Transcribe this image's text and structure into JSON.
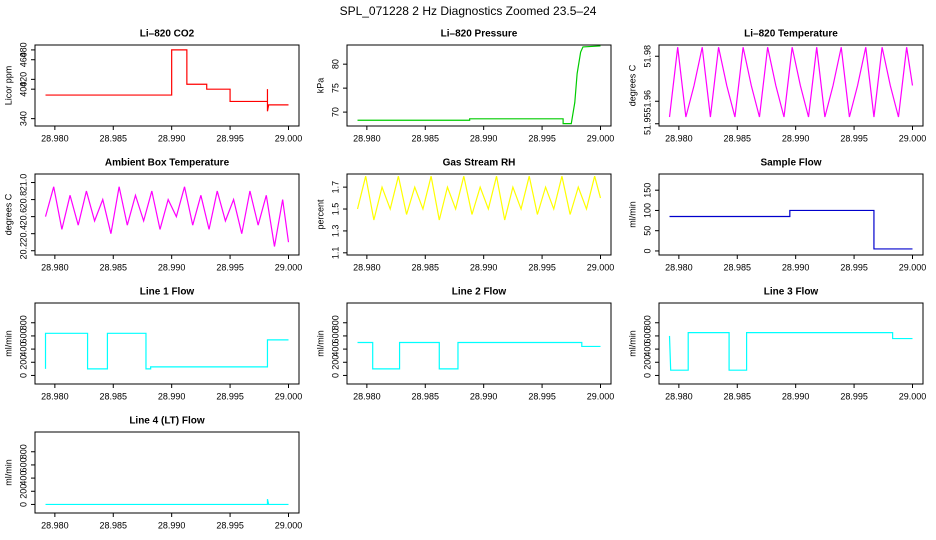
{
  "title": "SPL_071228  2 Hz Diagnostics Zoomed 23.5–24",
  "chart_data": [
    {
      "type": "line",
      "title": "Li–820 CO2",
      "ylabel": "Licor ppm",
      "color": "#ff0000",
      "x": [
        28.9792,
        28.99,
        28.99,
        28.9913,
        28.9913,
        28.993,
        28.993,
        28.995,
        28.995,
        28.9982,
        28.9982,
        28.9982,
        28.9983,
        29.0
      ],
      "values": [
        388,
        388,
        480,
        480,
        410,
        410,
        400,
        400,
        375,
        375,
        400,
        355,
        368,
        368
      ],
      "xlim": [
        28.9783,
        29.0009
      ],
      "ylim": [
        325,
        490
      ],
      "xticks": [
        {
          "value": 28.98,
          "label": "28.980"
        },
        28.985,
        {
          "value": 28.99,
          "label": "28.990"
        },
        28.995,
        {
          "value": 29,
          "label": "29.000"
        }
      ],
      "yticks": [
        340,
        400,
        420,
        460,
        480
      ]
    },
    {
      "type": "line",
      "title": "Li–820 Pressure",
      "ylabel": "kPa",
      "color": "#00cc00",
      "x": [
        28.9792,
        28.9888,
        28.9888,
        28.9968,
        28.9968,
        28.9975,
        28.9978,
        28.998,
        28.9983,
        28.9985,
        29.0
      ],
      "values": [
        68.3,
        68.3,
        68.6,
        68.6,
        67.6,
        67.6,
        72,
        78,
        82.5,
        83.6,
        83.8
      ],
      "xlim": [
        28.9783,
        29.0009
      ],
      "ylim": [
        67.1,
        84
      ],
      "xticks": [
        {
          "value": 28.98,
          "label": "28.980"
        },
        28.985,
        {
          "value": 28.99,
          "label": "28.990"
        },
        28.995,
        {
          "value": 29,
          "label": "29.000"
        }
      ],
      "yticks": [
        70,
        75,
        80
      ]
    },
    {
      "type": "line",
      "title": "Li–820 Temperature",
      "ylabel": "degrees C",
      "color": "#ff00ff",
      "x": [
        28.9792,
        28.9799,
        28.9806,
        28.9813,
        28.982,
        28.9827,
        28.9834,
        28.9841,
        28.9848,
        28.9855,
        28.9862,
        28.9869,
        28.9876,
        28.9883,
        28.989,
        28.9897,
        28.9904,
        28.9911,
        28.9918,
        28.9925,
        28.9932,
        28.9939,
        28.9946,
        28.9953,
        28.996,
        28.9967,
        28.9974,
        28.9981,
        28.9988,
        28.9995,
        29.0
      ],
      "values": [
        51.953,
        51.984,
        51.953,
        51.967,
        51.984,
        51.953,
        51.984,
        51.967,
        51.953,
        51.984,
        51.967,
        51.953,
        51.984,
        51.967,
        51.953,
        51.984,
        51.967,
        51.953,
        51.984,
        51.953,
        51.967,
        51.984,
        51.953,
        51.967,
        51.984,
        51.953,
        51.984,
        51.967,
        51.953,
        51.984,
        51.967
      ],
      "xlim": [
        28.9783,
        29.0009
      ],
      "ylim": [
        51.949,
        51.985
      ],
      "xticks": [
        {
          "value": 28.98,
          "label": "28.980"
        },
        28.985,
        {
          "value": 28.99,
          "label": "28.990"
        },
        28.995,
        {
          "value": 29,
          "label": "29.000"
        }
      ],
      "yticks": [
        51.95,
        51.96,
        51.98
      ]
    },
    {
      "type": "line",
      "title": "Ambient Box Temperature",
      "ylabel": "degrees C",
      "color": "#ff00ff",
      "x": [
        28.9792,
        28.9799,
        28.9806,
        28.9813,
        28.982,
        28.9827,
        28.9834,
        28.9841,
        28.9848,
        28.9855,
        28.9862,
        28.9869,
        28.9876,
        28.9883,
        28.989,
        28.9897,
        28.9904,
        28.9911,
        28.9918,
        28.9925,
        28.9932,
        28.9939,
        28.9946,
        28.9953,
        28.996,
        28.9967,
        28.9974,
        28.9981,
        28.9988,
        28.9995,
        29.0
      ],
      "values": [
        20.6,
        20.95,
        20.45,
        20.85,
        20.5,
        20.9,
        20.55,
        20.8,
        20.4,
        20.95,
        20.5,
        20.85,
        20.55,
        20.9,
        20.45,
        20.8,
        20.6,
        20.95,
        20.5,
        20.85,
        20.45,
        20.9,
        20.55,
        20.8,
        20.4,
        20.9,
        20.5,
        20.85,
        20.25,
        20.8,
        20.3
      ],
      "xlim": [
        28.9783,
        29.0009
      ],
      "ylim": [
        20.15,
        21.1
      ],
      "xticks": [
        {
          "value": 28.98,
          "label": "28.980"
        },
        28.985,
        {
          "value": 28.99,
          "label": "28.990"
        },
        28.995,
        {
          "value": 29,
          "label": "29.000"
        }
      ],
      "yticks": [
        {
          "value": 20.2,
          "label": "20.2"
        },
        {
          "value": 20.4,
          "label": "20.4"
        },
        {
          "value": 20.6,
          "label": "20.6"
        },
        {
          "value": 20.8,
          "label": "20.8"
        },
        {
          "value": 21,
          "label": "21.0"
        }
      ]
    },
    {
      "type": "line",
      "title": "Gas Stream RH",
      "ylabel": "percent",
      "color": "#ffff00",
      "x": [
        28.9792,
        28.9799,
        28.9806,
        28.9813,
        28.982,
        28.9827,
        28.9834,
        28.9841,
        28.9848,
        28.9855,
        28.9862,
        28.9869,
        28.9876,
        28.9883,
        28.989,
        28.9897,
        28.9904,
        28.9911,
        28.9918,
        28.9925,
        28.9932,
        28.9939,
        28.9946,
        28.9953,
        28.996,
        28.9967,
        28.9974,
        28.9981,
        28.9988,
        28.9995,
        29.0
      ],
      "values": [
        1.5,
        1.8,
        1.4,
        1.7,
        1.5,
        1.8,
        1.45,
        1.7,
        1.5,
        1.8,
        1.4,
        1.7,
        1.5,
        1.8,
        1.45,
        1.7,
        1.5,
        1.8,
        1.4,
        1.7,
        1.5,
        1.8,
        1.45,
        1.7,
        1.5,
        1.8,
        1.45,
        1.7,
        1.5,
        1.8,
        1.6
      ],
      "xlim": [
        28.9783,
        29.0009
      ],
      "ylim": [
        1.08,
        1.82
      ],
      "xticks": [
        {
          "value": 28.98,
          "label": "28.980"
        },
        28.985,
        {
          "value": 28.99,
          "label": "28.990"
        },
        28.995,
        {
          "value": 29,
          "label": "29.000"
        }
      ],
      "yticks": [
        1.1,
        1.3,
        1.5,
        1.7
      ]
    },
    {
      "type": "line",
      "title": "Sample Flow",
      "ylabel": "ml/min",
      "color": "#0000cc",
      "x": [
        28.9792,
        28.9895,
        28.9895,
        28.9967,
        28.9967,
        29.0
      ],
      "values": [
        85,
        85,
        100,
        100,
        5,
        5
      ],
      "xlim": [
        28.9783,
        29.0009
      ],
      "ylim": [
        -10,
        190
      ],
      "xticks": [
        {
          "value": 28.98,
          "label": "28.980"
        },
        28.985,
        {
          "value": 28.99,
          "label": "28.990"
        },
        28.995,
        {
          "value": 29,
          "label": "29.000"
        }
      ],
      "yticks": [
        0,
        50,
        100,
        150
      ]
    },
    {
      "type": "line",
      "title": "Line 1 Flow",
      "ylabel": "ml/min",
      "color": "#00ffff",
      "x": [
        28.9792,
        28.9792,
        28.9828,
        28.9828,
        28.9845,
        28.9845,
        28.9878,
        28.9878,
        28.9882,
        28.9882,
        28.9982,
        28.9982,
        29.0
      ],
      "values": [
        100,
        640,
        640,
        100,
        100,
        640,
        640,
        100,
        100,
        130,
        130,
        540,
        540
      ],
      "xlim": [
        28.9783,
        29.0009
      ],
      "ylim": [
        -130,
        1100
      ],
      "xticks": [
        {
          "value": 28.98,
          "label": "28.980"
        },
        28.985,
        {
          "value": 28.99,
          "label": "28.990"
        },
        28.995,
        {
          "value": 29,
          "label": "29.000"
        }
      ],
      "yticks": [
        0,
        200,
        400,
        600,
        800
      ]
    },
    {
      "type": "line",
      "title": "Line 2 Flow",
      "ylabel": "ml/min",
      "color": "#00ffff",
      "x": [
        28.9792,
        28.9805,
        28.9805,
        28.9828,
        28.9828,
        28.9862,
        28.9862,
        28.9878,
        28.9878,
        28.9984,
        28.9984,
        29.0
      ],
      "values": [
        500,
        500,
        100,
        100,
        500,
        500,
        100,
        100,
        500,
        500,
        440,
        440
      ],
      "xlim": [
        28.9783,
        29.0009
      ],
      "ylim": [
        -130,
        1100
      ],
      "xticks": [
        {
          "value": 28.98,
          "label": "28.980"
        },
        28.985,
        {
          "value": 28.99,
          "label": "28.990"
        },
        28.995,
        {
          "value": 29,
          "label": "29.000"
        }
      ],
      "yticks": [
        0,
        200,
        400,
        600,
        800
      ]
    },
    {
      "type": "line",
      "title": "Line 3 Flow",
      "ylabel": "ml/min",
      "color": "#00ffff",
      "x": [
        28.9792,
        28.9793,
        28.9808,
        28.9808,
        28.9843,
        28.9843,
        28.9858,
        28.9858,
        28.9983,
        28.9983,
        29.0
      ],
      "values": [
        600,
        80,
        80,
        650,
        650,
        80,
        80,
        650,
        650,
        560,
        560
      ],
      "xlim": [
        28.9783,
        29.0009
      ],
      "ylim": [
        -130,
        1100
      ],
      "xticks": [
        {
          "value": 28.98,
          "label": "28.980"
        },
        28.985,
        {
          "value": 28.99,
          "label": "28.990"
        },
        28.995,
        {
          "value": 29,
          "label": "29.000"
        }
      ],
      "yticks": [
        0,
        200,
        400,
        600,
        800
      ]
    },
    {
      "type": "line",
      "title": "Line 4 (LT) Flow",
      "ylabel": "ml/min",
      "color": "#00ffff",
      "x": [
        28.9792,
        28.9982,
        28.9982,
        28.9983,
        29.0
      ],
      "values": [
        0,
        0,
        80,
        0,
        0
      ],
      "xlim": [
        28.9783,
        29.0009
      ],
      "ylim": [
        -130,
        1100
      ],
      "xticks": [
        {
          "value": 28.98,
          "label": "28.980"
        },
        28.985,
        {
          "value": 28.99,
          "label": "28.990"
        },
        28.995,
        {
          "value": 29,
          "label": "29.000"
        }
      ],
      "yticks": [
        0,
        200,
        400,
        600,
        800
      ]
    }
  ]
}
